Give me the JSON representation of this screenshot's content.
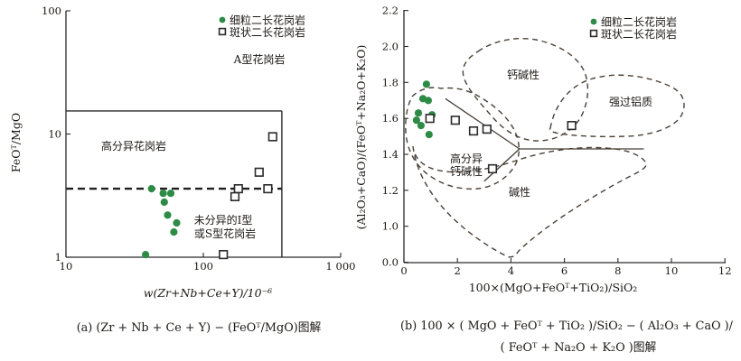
{
  "legend": {
    "fine_grained": "细粒二长花岗岩",
    "porphyritic": "斑状二长花岗岩"
  },
  "colors": {
    "green_marker": "#2e8b46",
    "square_marker_stroke": "#2b2b2b",
    "field_line": "#4a4136",
    "axis": "#2b2b2b"
  },
  "chart_data": [
    {
      "id": "a",
      "type": "scatter",
      "title": "(a) (Zr + Nb + Ce + Y) − (FeOᵀ/MgO)图解",
      "xlabel": "w(Zr+Nb+Ce+Y)/10⁻⁶",
      "ylabel": "FeOᵀ/MgO",
      "xscale": "log",
      "yscale": "log",
      "xlim": [
        10,
        1000
      ],
      "ylim": [
        1,
        100
      ],
      "grid": false,
      "legend_position": "top-right-inside",
      "x_ticks": [
        {
          "v": 10,
          "label": "10"
        },
        {
          "v": 100,
          "label": "100"
        },
        {
          "v": 1000,
          "label": "1 000"
        }
      ],
      "y_ticks": [
        {
          "v": 1,
          "label": "1"
        },
        {
          "v": 10,
          "label": "10"
        },
        {
          "v": 100,
          "label": "100"
        }
      ],
      "regions": {
        "a_type": "A型花岗岩",
        "high_frac": "高分异花岗岩",
        "undiff_line1": "未分异的I型",
        "undiff_line2": "或S型花岗岩"
      },
      "series": [
        {
          "name": "细粒二长花岗岩",
          "marker": "circle",
          "color": "#2e8b46",
          "points": [
            [
              42,
              3.6
            ],
            [
              51,
              3.3
            ],
            [
              58,
              3.3
            ],
            [
              52,
              2.8
            ],
            [
              55,
              2.2
            ],
            [
              64,
              1.9
            ],
            [
              61,
              1.6
            ],
            [
              38,
              1.05
            ]
          ]
        },
        {
          "name": "斑状二长花岗岩",
          "marker": "square",
          "color": "#ffffff",
          "points": [
            [
              320,
              9.5
            ],
            [
              255,
              4.9
            ],
            [
              180,
              3.6
            ],
            [
              295,
              3.6
            ],
            [
              170,
              3.1
            ],
            [
              140,
              1.05
            ]
          ]
        }
      ],
      "boundaries": [
        {
          "style": "solid",
          "pts": [
            [
              10,
              15.4
            ],
            [
              373,
              15.4
            ]
          ]
        },
        {
          "style": "solid",
          "pts": [
            [
              373,
              15.4
            ],
            [
              373,
              1.0
            ]
          ]
        },
        {
          "style": "dashed",
          "pts": [
            [
              10,
              3.6
            ],
            [
              373,
              3.6
            ]
          ]
        }
      ]
    },
    {
      "id": "b",
      "type": "scatter",
      "title": "(b) 100 × ( MgO + FeOᵀ + TiO₂ )/SiO₂ − ( Al₂O₃ + CaO )/( FeOᵀ + Na₂O + K₂O )图解",
      "title_lines": [
        "(b) 100 × ( MgO + FeOᵀ + TiO₂ )/SiO₂ − ( Al₂O₃ + CaO )/",
        "( FeOᵀ + Na₂O + K₂O )图解"
      ],
      "xlabel": "100×(MgO+FeOᵀ+TiO₂)/SiO₂",
      "ylabel": "(Al₂O₃+CaO)/(FeOᵀ+Na₂O+K₂O)",
      "xscale": "linear",
      "yscale": "linear",
      "xlim": [
        0,
        12
      ],
      "ylim": [
        0.8,
        2.2
      ],
      "y_axis_note": "bottom axis corner tick labeled 0.0",
      "grid": false,
      "legend_position": "top-right-inside",
      "x_ticks": [
        {
          "v": 0,
          "label": "0"
        },
        {
          "v": 2,
          "label": "2"
        },
        {
          "v": 4,
          "label": "4"
        },
        {
          "v": 6,
          "label": "6"
        },
        {
          "v": 8,
          "label": "8"
        },
        {
          "v": 10,
          "label": "10"
        },
        {
          "v": 12,
          "label": "12"
        }
      ],
      "y_ticks": [
        {
          "v": 2.2,
          "label": "2.2"
        },
        {
          "v": 2.0,
          "label": "2.0"
        },
        {
          "v": 1.8,
          "label": "1.8"
        },
        {
          "v": 1.6,
          "label": "1.6"
        },
        {
          "v": 1.4,
          "label": "1.4"
        },
        {
          "v": 1.2,
          "label": "1.2"
        },
        {
          "v": 1.0,
          "label": "1.0"
        },
        {
          "v": 0.8,
          "label": "0.0"
        }
      ],
      "regions": {
        "calc_alkaline": "钙碱性",
        "peraluminous": "强过铝质",
        "hfca_line1": "高分异",
        "hfca_line2": "钙碱性",
        "alkaline": "碱性"
      },
      "series": [
        {
          "name": "细粒二长花岗岩",
          "marker": "circle",
          "color": "#2e8b46",
          "points": [
            [
              0.84,
              1.79
            ],
            [
              0.71,
              1.71
            ],
            [
              0.91,
              1.7
            ],
            [
              0.54,
              1.63
            ],
            [
              1.05,
              1.62
            ],
            [
              0.47,
              1.59
            ],
            [
              0.64,
              1.56
            ],
            [
              0.94,
              1.51
            ]
          ]
        },
        {
          "name": "斑状二长花岗岩",
          "marker": "square",
          "color": "#ffffff",
          "points": [
            [
              0.97,
              1.6
            ],
            [
              1.92,
              1.59
            ],
            [
              2.6,
              1.53
            ],
            [
              3.1,
              1.54
            ],
            [
              6.27,
              1.56
            ],
            [
              3.31,
              1.32
            ]
          ]
        }
      ],
      "boundaries": [
        {
          "style": "solid",
          "pts": [
            [
              1.55,
              1.71
            ],
            [
              4.32,
              1.43
            ]
          ]
        },
        {
          "style": "solid",
          "pts": [
            [
              4.32,
              1.43
            ],
            [
              8.97,
              1.43
            ]
          ]
        },
        {
          "style": "solid",
          "pts": [
            [
              4.32,
              1.43
            ],
            [
              3.0,
              1.25
            ]
          ]
        }
      ]
    }
  ]
}
